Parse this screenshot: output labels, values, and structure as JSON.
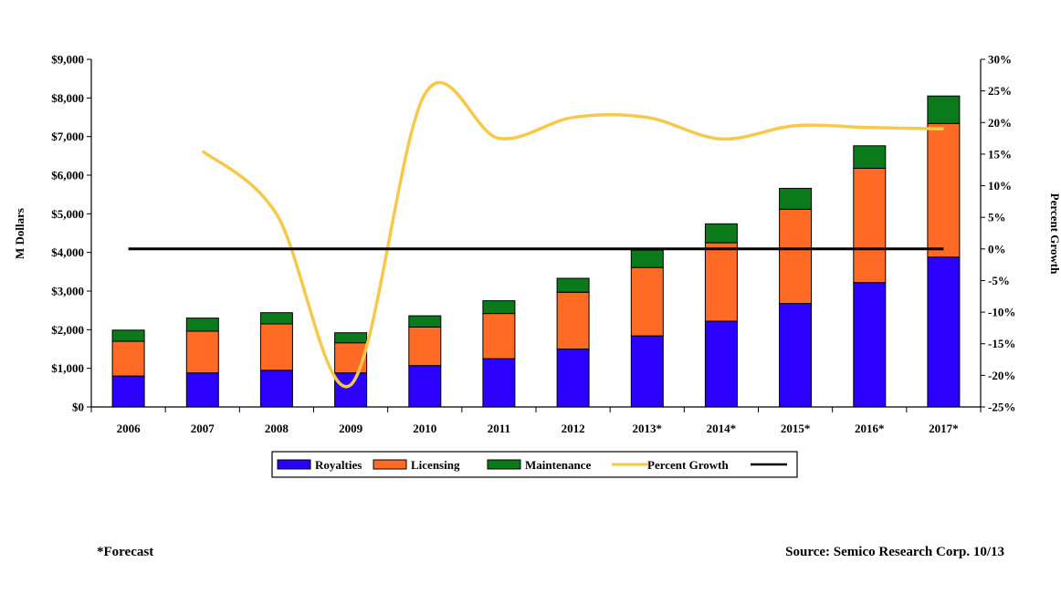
{
  "chart_data": {
    "type": "bar",
    "stacked": true,
    "categories": [
      "2006",
      "2007",
      "2008",
      "2009",
      "2010",
      "2011",
      "2012",
      "2013*",
      "2014*",
      "2015*",
      "2016*",
      "2017*"
    ],
    "series": [
      {
        "name": "Royalties",
        "kind": "bar",
        "axis": "left",
        "color": "#2b00ff",
        "values": [
          800,
          880,
          950,
          880,
          1070,
          1250,
          1500,
          1840,
          2220,
          2680,
          3220,
          3880
        ]
      },
      {
        "name": "Licensing",
        "kind": "bar",
        "axis": "left",
        "color": "#ff6a25",
        "values": [
          900,
          1080,
          1200,
          780,
          1000,
          1170,
          1470,
          1770,
          2030,
          2440,
          2960,
          3460
        ]
      },
      {
        "name": "Maintenance",
        "kind": "bar",
        "axis": "left",
        "color": "#0b7a1b",
        "values": [
          290,
          340,
          290,
          260,
          290,
          330,
          360,
          450,
          490,
          540,
          580,
          710
        ]
      },
      {
        "name": "Percent Growth",
        "kind": "line",
        "axis": "right",
        "color": "#f7c94a",
        "values": [
          null,
          15.5,
          5.5,
          -21.5,
          24.5,
          17.5,
          20.8,
          20.8,
          17.4,
          19.5,
          19.2,
          19.0
        ]
      },
      {
        "name": "",
        "kind": "line",
        "axis": "right",
        "color": "#000000",
        "values": [
          0,
          0,
          0,
          0,
          0,
          0,
          0,
          0,
          0,
          0,
          0,
          0
        ]
      }
    ],
    "ylabel": "M Dollars",
    "y2label": "Percent Growth",
    "ylim": [
      0,
      9000
    ],
    "yticks": [
      0,
      1000,
      2000,
      3000,
      4000,
      5000,
      6000,
      7000,
      8000,
      9000
    ],
    "ytick_labels": [
      "$0",
      "$1,000",
      "$2,000",
      "$3,000",
      "$4,000",
      "$5,000",
      "$6,000",
      "$7,000",
      "$8,000",
      "$9,000"
    ],
    "y2lim": [
      -25,
      30
    ],
    "y2ticks": [
      -25,
      -20,
      -15,
      -10,
      -5,
      0,
      5,
      10,
      15,
      20,
      25,
      30
    ],
    "y2tick_labels": [
      "-25%",
      "-20%",
      "-15%",
      "-10%",
      "-5%",
      "0%",
      "5%",
      "10%",
      "15%",
      "20%",
      "25%",
      "30%"
    ],
    "legend_position": "bottom",
    "grid": false
  },
  "footnotes": {
    "left": "*Forecast",
    "right": "Source: Semico Research Corp. 10/13"
  }
}
